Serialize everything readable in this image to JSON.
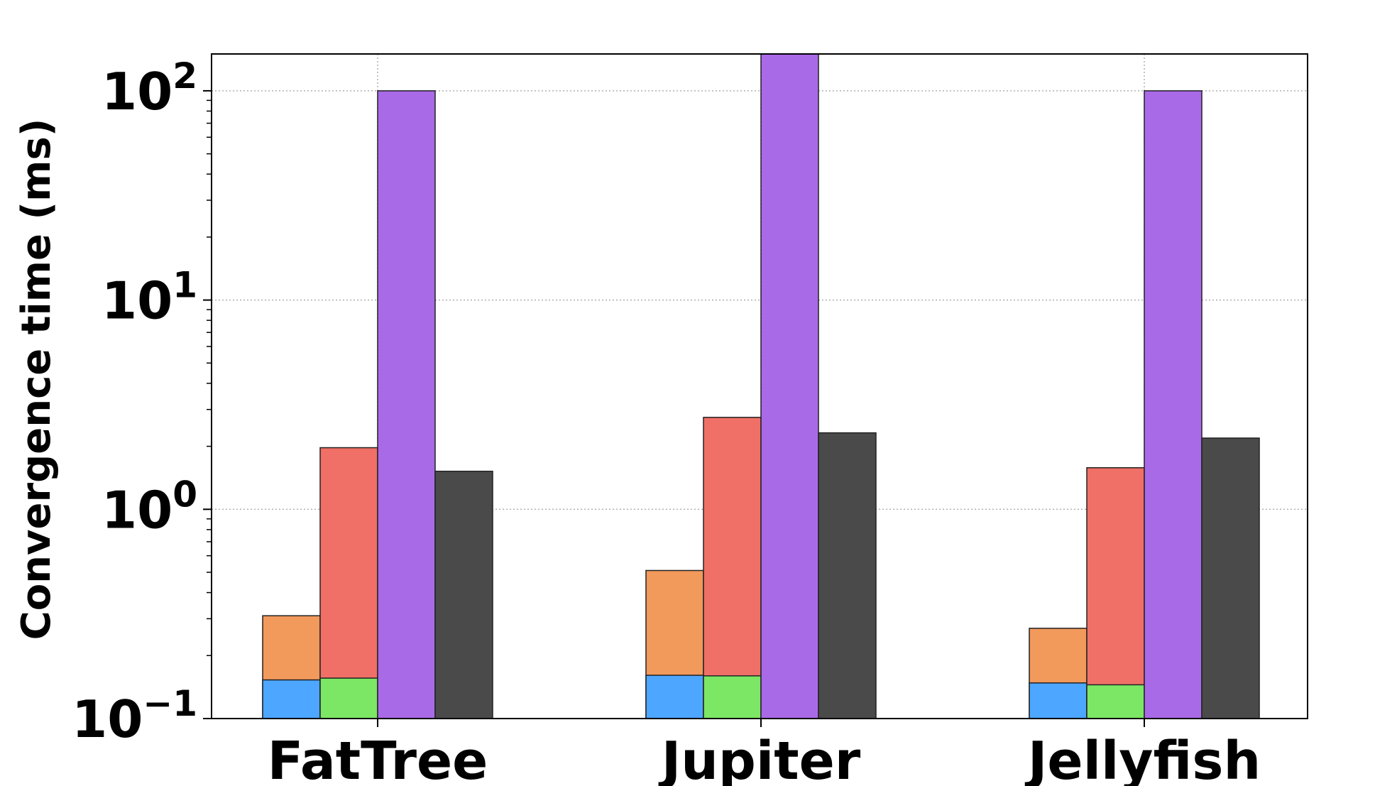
{
  "chart_data": {
    "type": "bar",
    "stacked_segments": true,
    "categories": [
      "FatTree",
      "Jupiter",
      "Jellyfish"
    ],
    "ylabel": "Convergence time (ms)",
    "xlabel": "",
    "yscale": "log",
    "ylim": [
      0.1,
      150
    ],
    "yticks": [
      {
        "value": 0.1,
        "base": "10",
        "exp": "−1"
      },
      {
        "value": 1,
        "base": "10",
        "exp": "0"
      },
      {
        "value": 10,
        "base": "10",
        "exp": "1"
      },
      {
        "value": 100,
        "base": "10",
        "exp": "2"
      }
    ],
    "grid": true,
    "bar_groups": [
      {
        "slot": 0,
        "segments": [
          {
            "color": "#4da6ff",
            "values": [
              0.153,
              0.161,
              0.148
            ]
          },
          {
            "color": "#f2995c",
            "values": [
              0.31,
              0.51,
              0.27
            ]
          }
        ]
      },
      {
        "slot": 1,
        "segments": [
          {
            "color": "#7ce665",
            "values": [
              0.156,
              0.16,
              0.145
            ]
          },
          {
            "color": "#f07067",
            "values": [
              1.97,
              2.75,
              1.58
            ]
          }
        ]
      },
      {
        "slot": 2,
        "segments": [
          {
            "color": "#a96ae8",
            "values": [
              100,
              150,
              100
            ]
          }
        ]
      },
      {
        "slot": 3,
        "segments": [
          {
            "color": "#4a4a4a",
            "values": [
              1.52,
              2.32,
              2.19
            ]
          }
        ]
      }
    ]
  }
}
